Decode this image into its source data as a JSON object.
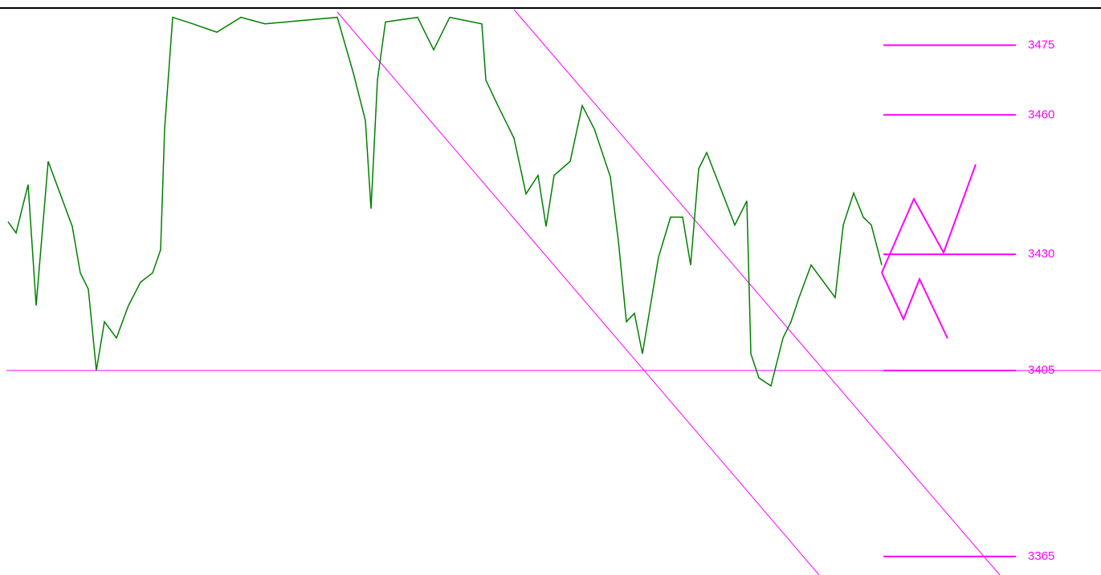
{
  "chart_data": {
    "type": "line",
    "x": [
      10,
      20,
      35,
      45,
      60,
      75,
      90,
      100,
      110,
      120,
      130,
      145,
      160,
      175,
      190,
      200,
      205,
      215,
      240,
      270,
      300,
      330,
      420,
      440,
      455,
      462,
      470,
      480,
      520,
      540,
      560,
      600,
      605,
      620,
      640,
      655,
      670,
      680,
      690,
      710,
      725,
      740,
      760,
      770,
      780,
      790,
      800,
      810,
      820,
      835,
      850,
      860,
      870,
      880,
      900,
      915,
      930,
      935,
      945,
      960,
      975,
      985,
      995,
      1010,
      1025,
      1040,
      1050,
      1063,
      1075,
      1085,
      1098
    ],
    "series": [
      {
        "color": "#008000",
        "values": [
          3437,
          3434.6,
          3445,
          3419,
          3450,
          3443,
          3436,
          3426,
          3422.5,
          3405,
          3415.5,
          3412,
          3419,
          3424,
          3426,
          3431,
          3457,
          3481,
          3479.6,
          3477.8,
          3481,
          3479.6,
          3481,
          3469,
          3458.8,
          3439.8,
          3467.5,
          3480,
          3481,
          3474,
          3481,
          3479.6,
          3467.5,
          3462,
          3455,
          3443,
          3447,
          3436,
          3447,
          3450,
          3462,
          3457,
          3446.7,
          3432.9,
          3415.5,
          3417.3,
          3408.6,
          3419,
          3429.4,
          3438,
          3438,
          3427.7,
          3448.4,
          3451.9,
          3443,
          3436.3,
          3441.5,
          3408.6,
          3403.4,
          3401.7,
          3412,
          3415.5,
          3420.7,
          3427.7,
          3424.2,
          3420.7,
          3436.3,
          3443.2,
          3438,
          3436.3,
          3427.7
        ]
      }
    ],
    "xlim": [
      0,
      1371
    ],
    "ylim": [
      3361,
      3483
    ],
    "yticks": [
      3475,
      3460,
      3430,
      3405,
      3365
    ],
    "hlines": [
      3405
    ],
    "level_color": "#ff00ff"
  }
}
